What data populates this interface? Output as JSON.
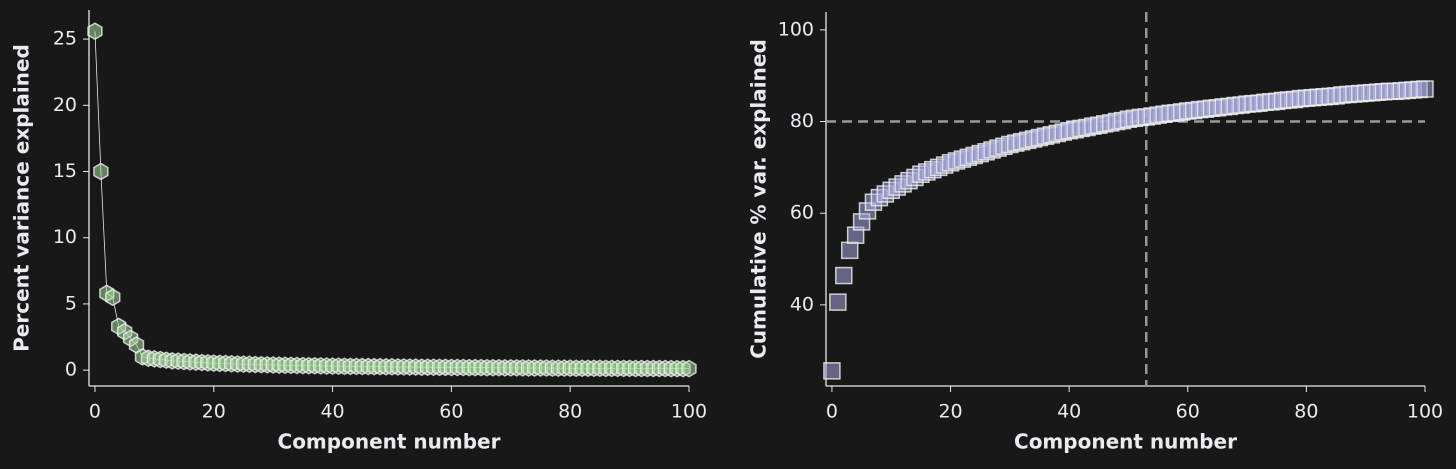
{
  "chart_data": [
    {
      "type": "scatter-line",
      "xlabel": "Component number",
      "ylabel": "Percent variance explained",
      "x": [
        0,
        1,
        2,
        3,
        4,
        5,
        6,
        7,
        8,
        9,
        10,
        11,
        12,
        13,
        14,
        15,
        16,
        17,
        18,
        19,
        20,
        21,
        22,
        23,
        24,
        25,
        26,
        27,
        28,
        29,
        30,
        31,
        32,
        33,
        34,
        35,
        36,
        37,
        38,
        39,
        40,
        41,
        42,
        43,
        44,
        45,
        46,
        47,
        48,
        49,
        50,
        51,
        52,
        53,
        54,
        55,
        56,
        57,
        58,
        59,
        60,
        61,
        62,
        63,
        64,
        65,
        66,
        67,
        68,
        69,
        70,
        71,
        72,
        73,
        74,
        75,
        76,
        77,
        78,
        79,
        80,
        81,
        82,
        83,
        84,
        85,
        86,
        87,
        88,
        89,
        90,
        91,
        92,
        93,
        94,
        95,
        96,
        97,
        98,
        99,
        100
      ],
      "series": [
        {
          "color": "#a9d8a2",
          "values": [
            25.6,
            15.0,
            5.8,
            5.5,
            3.3,
            2.9,
            2.4,
            1.9,
            1.0,
            0.9,
            0.85,
            0.8,
            0.75,
            0.7,
            0.68,
            0.65,
            0.62,
            0.6,
            0.57,
            0.55,
            0.53,
            0.51,
            0.5,
            0.48,
            0.46,
            0.45,
            0.44,
            0.42,
            0.41,
            0.4,
            0.39,
            0.38,
            0.37,
            0.36,
            0.35,
            0.34,
            0.33,
            0.33,
            0.32,
            0.31,
            0.3,
            0.3,
            0.29,
            0.28,
            0.28,
            0.27,
            0.27,
            0.26,
            0.26,
            0.25,
            0.25,
            0.24,
            0.24,
            0.23,
            0.23,
            0.22,
            0.22,
            0.22,
            0.21,
            0.21,
            0.2,
            0.2,
            0.2,
            0.19,
            0.19,
            0.19,
            0.18,
            0.18,
            0.18,
            0.17,
            0.17,
            0.17,
            0.17,
            0.16,
            0.16,
            0.16,
            0.16,
            0.15,
            0.15,
            0.15,
            0.15,
            0.14,
            0.14,
            0.14,
            0.14,
            0.14,
            0.13,
            0.13,
            0.13,
            0.13,
            0.13,
            0.12,
            0.12,
            0.12,
            0.12,
            0.12,
            0.12,
            0.11,
            0.11,
            0.11,
            0.11
          ]
        }
      ],
      "xlim": [
        -1,
        100
      ],
      "xticks": [
        0,
        20,
        40,
        60,
        80,
        100
      ],
      "ylim": [
        -1.2,
        27.2
      ],
      "yticks": [
        0,
        5,
        10,
        15,
        20,
        25
      ]
    },
    {
      "type": "scatter",
      "xlabel": "Component number",
      "ylabel": "Cumulative % var. explained",
      "x": [
        0,
        1,
        2,
        3,
        4,
        5,
        6,
        7,
        8,
        9,
        10,
        11,
        12,
        13,
        14,
        15,
        16,
        17,
        18,
        19,
        20,
        21,
        22,
        23,
        24,
        25,
        26,
        27,
        28,
        29,
        30,
        31,
        32,
        33,
        34,
        35,
        36,
        37,
        38,
        39,
        40,
        41,
        42,
        43,
        44,
        45,
        46,
        47,
        48,
        49,
        50,
        51,
        52,
        53,
        54,
        55,
        56,
        57,
        58,
        59,
        60,
        61,
        62,
        63,
        64,
        65,
        66,
        67,
        68,
        69,
        70,
        71,
        72,
        73,
        74,
        75,
        76,
        77,
        78,
        79,
        80,
        81,
        82,
        83,
        84,
        85,
        86,
        87,
        88,
        89,
        90,
        91,
        92,
        93,
        94,
        95,
        96,
        97,
        98,
        99,
        100
      ],
      "series": [
        {
          "color": "#a6a6dc",
          "values": [
            25.6,
            40.6,
            46.4,
            51.9,
            55.2,
            58.1,
            60.5,
            62.4,
            63.4,
            64.2,
            65.0,
            65.7,
            66.4,
            67.1,
            67.8,
            68.5,
            69.0,
            69.5,
            70.0,
            70.5,
            71.0,
            71.4,
            71.8,
            72.2,
            72.6,
            73.0,
            73.4,
            73.8,
            74.2,
            74.6,
            75.0,
            75.3,
            75.6,
            75.9,
            76.2,
            76.5,
            76.8,
            77.1,
            77.4,
            77.7,
            78.0,
            78.2,
            78.5,
            78.7,
            79.0,
            79.2,
            79.5,
            79.7,
            80.0,
            80.2,
            80.5,
            80.7,
            80.9,
            81.0,
            81.2,
            81.4,
            81.6,
            81.8,
            81.9,
            82.1,
            82.3,
            82.4,
            82.6,
            82.7,
            82.9,
            83.0,
            83.2,
            83.3,
            83.5,
            83.6,
            83.8,
            83.9,
            84.0,
            84.2,
            84.3,
            84.4,
            84.6,
            84.7,
            84.8,
            85.0,
            85.1,
            85.2,
            85.3,
            85.4,
            85.5,
            85.6,
            85.8,
            85.9,
            86.0,
            86.1,
            86.2,
            86.3,
            86.4,
            86.5,
            86.6,
            86.6,
            86.7,
            86.8,
            86.9,
            87.0,
            87.1
          ]
        }
      ],
      "hline": 80,
      "vline": 53,
      "xlim": [
        -1,
        100
      ],
      "xticks": [
        0,
        20,
        40,
        60,
        80,
        100
      ],
      "ylim": [
        22.3,
        103.9
      ],
      "yticks": [
        40,
        60,
        80,
        100
      ]
    }
  ]
}
